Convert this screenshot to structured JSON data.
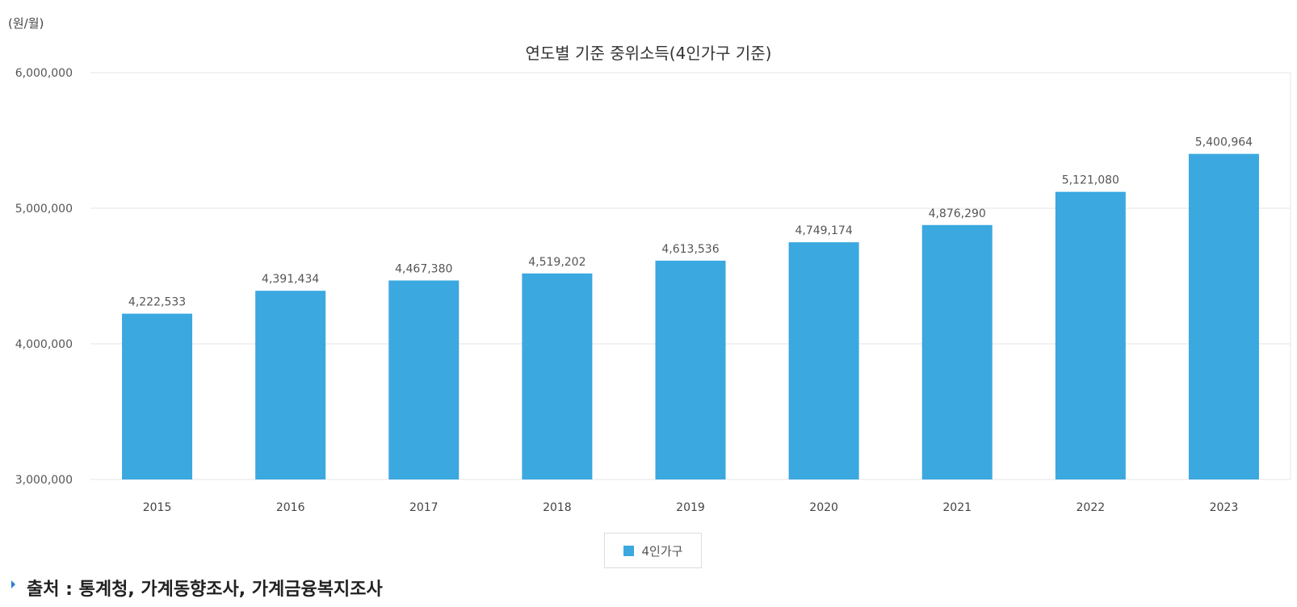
{
  "unit_label": "(원/월)",
  "source_text": "출처 : 통계청, 가계동향조사, 가계금융복지조사",
  "chart_data": {
    "type": "bar",
    "title": "연도별 기준 중위소득(4인가구 기준)",
    "xlabel": "",
    "ylabel": "",
    "categories": [
      "2015",
      "2016",
      "2017",
      "2018",
      "2019",
      "2020",
      "2021",
      "2022",
      "2023"
    ],
    "series": [
      {
        "name": "4인가구",
        "values": [
          4222533,
          4391434,
          4467380,
          4519202,
          4613536,
          4749174,
          4876290,
          5121080,
          5400964
        ],
        "data_labels": [
          "4,222,533",
          "4,391,434",
          "4,467,380",
          "4,519,202",
          "4,613,536",
          "4,749,174",
          "4,876,290",
          "5,121,080",
          "5,400,964"
        ],
        "color": "#3ba8e0"
      }
    ],
    "ylim": [
      3000000,
      6000000
    ],
    "yticks": [
      3000000,
      4000000,
      5000000,
      6000000
    ],
    "ytick_labels": [
      "3,000,000",
      "4,000,000",
      "5,000,000",
      "6,000,000"
    ],
    "grid": true,
    "legend_position": "bottom-center"
  }
}
